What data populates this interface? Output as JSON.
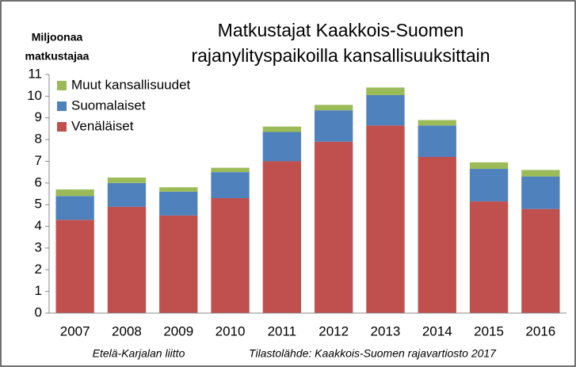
{
  "chart_data": {
    "type": "stacked_bar",
    "title": [
      "Matkustajat Kaakkois-Suomen",
      "rajanylityspaikoilla kansallisuuksittain"
    ],
    "y_label": [
      "Miljoonaa",
      "matkustajaa"
    ],
    "notes": [
      "Etelä-Karjalan liitto",
      "Tilastolähde: Kaakkois-Suomen rajavartiosto 2017"
    ],
    "categories": [
      "2007",
      "2008",
      "2009",
      "2010",
      "2011",
      "2012",
      "2013",
      "2014",
      "2015",
      "2016"
    ],
    "series": [
      {
        "name": "Venäläiset",
        "color": "#c0504d",
        "values": [
          4.3,
          4.9,
          4.5,
          5.3,
          7.0,
          7.9,
          8.65,
          7.2,
          5.15,
          4.8
        ]
      },
      {
        "name": "Suomalaiset",
        "color": "#4f81bd",
        "values": [
          1.1,
          1.1,
          1.1,
          1.2,
          1.35,
          1.45,
          1.4,
          1.45,
          1.5,
          1.5
        ]
      },
      {
        "name": "Muut kansallisuudet",
        "color": "#9bbb59",
        "values": [
          0.3,
          0.25,
          0.2,
          0.2,
          0.25,
          0.25,
          0.35,
          0.25,
          0.3,
          0.3
        ]
      }
    ],
    "ylim": [
      0,
      11
    ],
    "yticks": [
      0,
      1,
      2,
      3,
      4,
      5,
      6,
      7,
      8,
      9,
      10,
      11
    ],
    "grid": false
  }
}
